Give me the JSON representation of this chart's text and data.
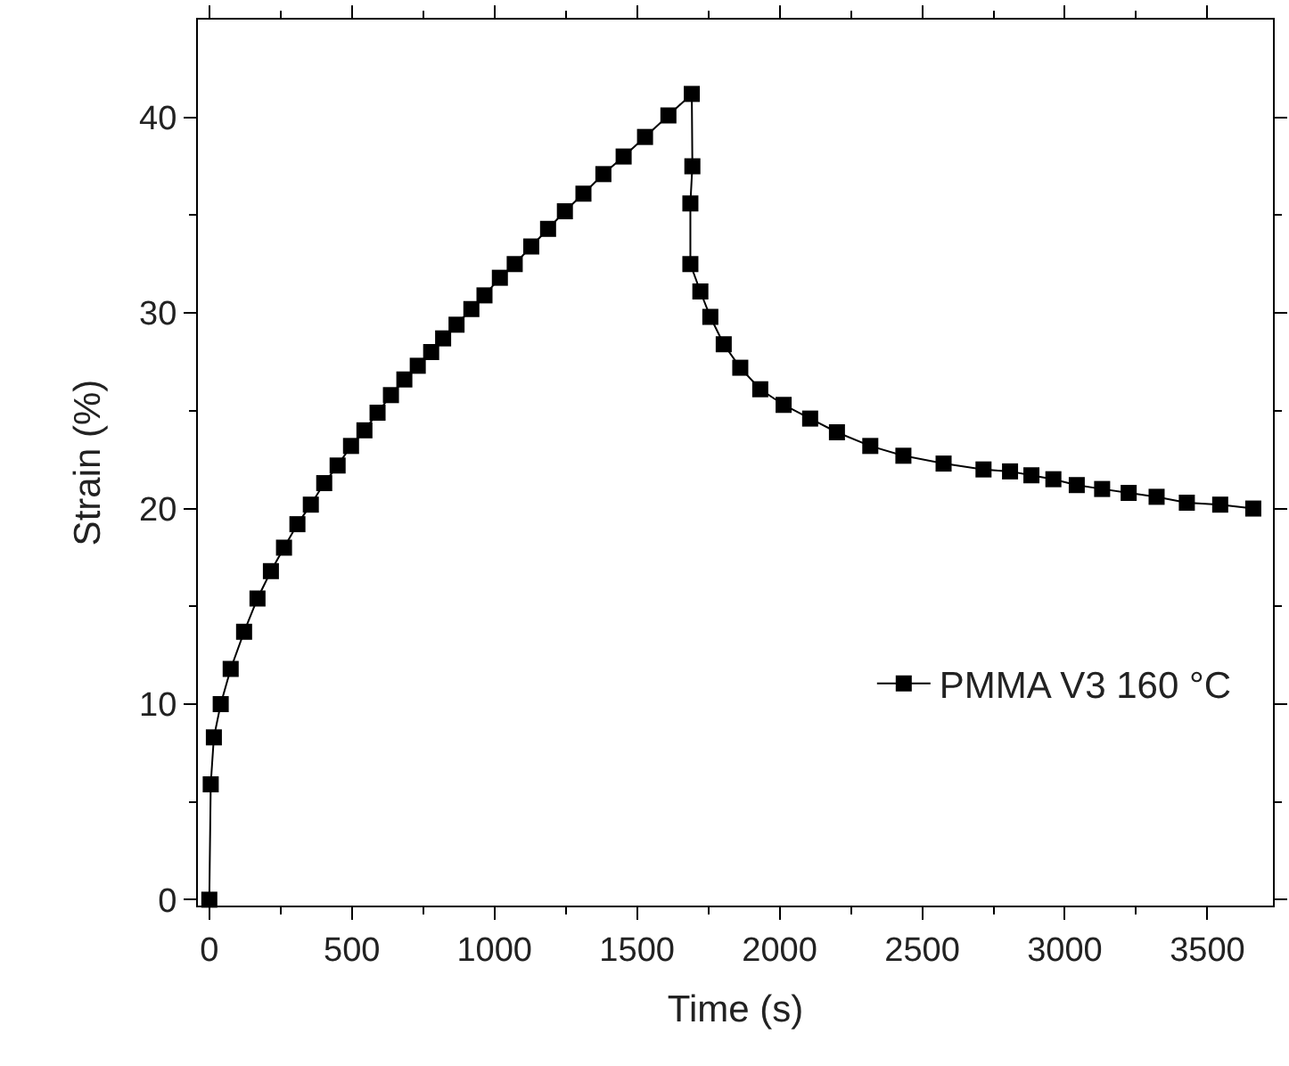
{
  "chart_data": {
    "type": "line",
    "xlabel": "Time (s)",
    "ylabel": "Strain (%)",
    "series": [
      {
        "name": "PMMA V3 160 °C",
        "color": "#000000",
        "x": [
          0,
          5,
          16,
          40,
          75,
          122,
          169,
          216,
          262,
          309,
          356,
          403,
          450,
          497,
          544,
          590,
          637,
          684,
          731,
          778,
          820,
          867,
          919,
          965,
          1019,
          1071,
          1129,
          1188,
          1247,
          1312,
          1382,
          1453,
          1528,
          1610,
          1692,
          1694,
          1687,
          1687,
          1722,
          1757,
          1804,
          1862,
          1932,
          2014,
          2107,
          2201,
          2318,
          2434,
          2575,
          2715,
          2808,
          2883,
          2960,
          3042,
          3131,
          3224,
          3322,
          3428,
          3545,
          3661
        ],
        "values": [
          0,
          5.9,
          8.3,
          10.0,
          11.8,
          13.7,
          15.4,
          16.8,
          18.0,
          19.2,
          20.2,
          21.3,
          22.2,
          23.2,
          24.0,
          24.9,
          25.8,
          26.6,
          27.3,
          28.0,
          28.7,
          29.4,
          30.2,
          30.9,
          31.8,
          32.5,
          33.4,
          34.3,
          35.2,
          36.1,
          37.1,
          38.0,
          39.0,
          40.1,
          41.2,
          37.5,
          35.6,
          32.5,
          31.1,
          29.8,
          28.4,
          27.2,
          26.1,
          25.3,
          24.6,
          23.9,
          23.2,
          22.7,
          22.3,
          22.0,
          21.9,
          21.7,
          21.5,
          21.2,
          21.0,
          20.8,
          20.6,
          20.3,
          20.2,
          20.0
        ]
      }
    ],
    "xlim": [
      -40,
      3730
    ],
    "ylim": [
      -0.3,
      45
    ],
    "xticks": [
      0,
      {
        "value": 250,
        "label": null
      },
      500,
      {
        "value": 750,
        "label": null
      },
      1000,
      {
        "value": 1250,
        "label": null
      },
      1500,
      {
        "value": 1750,
        "label": null
      },
      2000,
      {
        "value": 2250,
        "label": null
      },
      2500,
      {
        "value": 2750,
        "label": null
      },
      3000,
      {
        "value": 3250,
        "label": null
      },
      3500
    ],
    "yticks": [
      0,
      {
        "value": 5,
        "label": null
      },
      10,
      {
        "value": 15,
        "label": null
      },
      20,
      {
        "value": 25,
        "label": null
      },
      30,
      {
        "value": 35,
        "label": null
      },
      40
    ],
    "marker": "square",
    "line_style": "solid",
    "grid": false,
    "legend": "bottom right"
  }
}
